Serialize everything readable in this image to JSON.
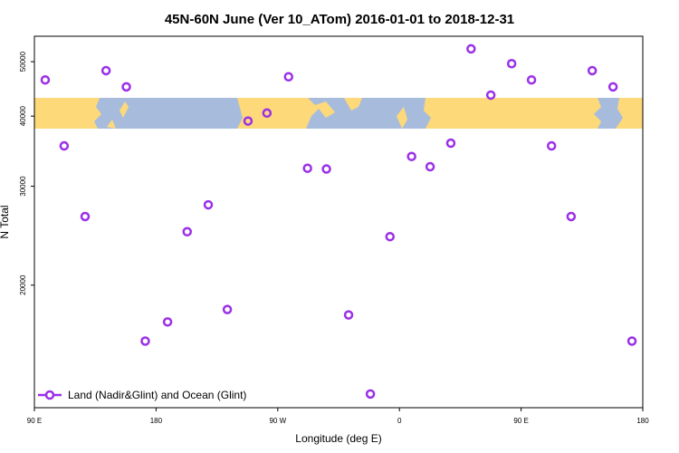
{
  "chart_data": {
    "type": "scatter",
    "title": "45N-60N June (Ver 10_ATom)   2016-01-01 to 2018-12-31",
    "x_label": "Longitude (deg E)",
    "y_label": "N Total",
    "log_y": true,
    "xlim": [
      90,
      540
    ],
    "ylim": [
      12100,
      55500
    ],
    "xticks": [
      {
        "value": 90,
        "label": "90 E"
      },
      {
        "value": 180,
        "label": "180"
      },
      {
        "value": 270,
        "label": "90 W"
      },
      {
        "value": 360,
        "label": "0"
      },
      {
        "value": 450,
        "label": "90 E"
      },
      {
        "value": 540,
        "label": "180"
      }
    ],
    "yticks": [
      20000,
      30000,
      40000,
      50000
    ],
    "legend_position": "lower left",
    "series": [
      {
        "name": "Land (Nadir&Glint) and Ocean (Glint)",
        "color": "#9b30e8",
        "x": [
          98,
          112,
          127.5,
          143,
          158,
          172,
          188.5,
          203,
          218.6,
          232.7,
          248,
          262,
          278,
          292,
          306,
          322.4,
          338.5,
          353,
          369,
          382.7,
          398,
          413,
          427.6,
          443,
          457.7,
          472.5,
          487,
          502.6,
          518,
          532
        ],
        "values": [
          46400,
          35400,
          26500,
          48200,
          45100,
          15900,
          17200,
          24900,
          27800,
          18100,
          39200,
          40500,
          47000,
          32300,
          32200,
          17700,
          12800,
          24400,
          33900,
          32500,
          35800,
          52700,
          43600,
          49600,
          46400,
          35400,
          26500,
          48200,
          45100,
          15900
        ]
      }
    ]
  }
}
